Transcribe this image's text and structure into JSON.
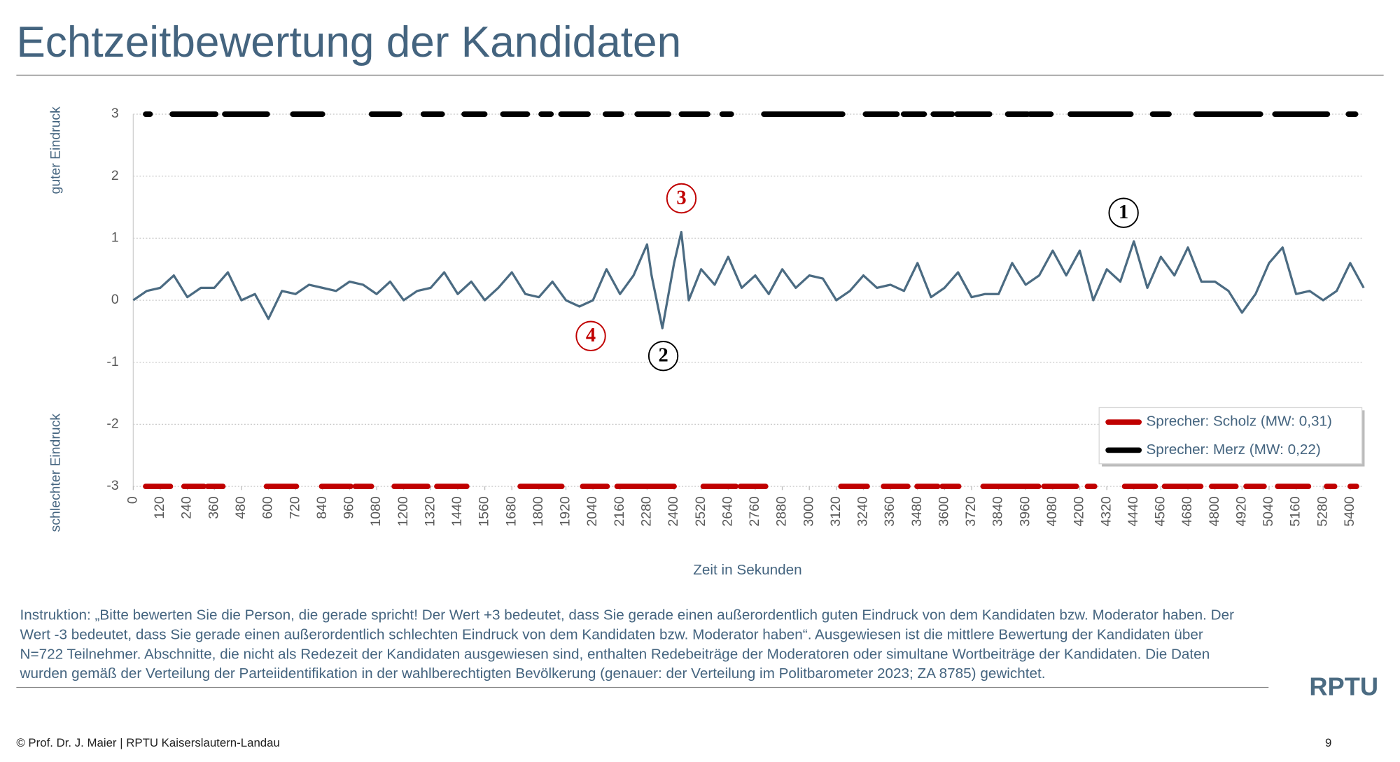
{
  "header": {
    "title": "Echtzeitbewertung der Kandidaten"
  },
  "chart_data": {
    "type": "line",
    "y_label_top": "guter Eindruck",
    "y_label_bottom": "schlechter Eindruck",
    "x_label": "Zeit in Sekunden",
    "xlim": [
      0,
      5460
    ],
    "ylim": [
      -3,
      3
    ],
    "yticks": [
      -3,
      -2,
      -1,
      0,
      1,
      2,
      3
    ],
    "xticks": [
      0,
      120,
      240,
      360,
      480,
      600,
      720,
      840,
      960,
      1080,
      1200,
      1320,
      1440,
      1560,
      1680,
      1800,
      1920,
      2040,
      2160,
      2280,
      2400,
      2520,
      2640,
      2760,
      2880,
      3000,
      3120,
      3240,
      3360,
      3480,
      3600,
      3720,
      3840,
      3960,
      4080,
      4200,
      4320,
      4440,
      4560,
      4680,
      4800,
      4920,
      5040,
      5160,
      5280,
      5400
    ],
    "grid": true,
    "x": [
      0,
      60,
      120,
      180,
      240,
      300,
      360,
      420,
      480,
      540,
      600,
      660,
      720,
      780,
      840,
      900,
      960,
      1020,
      1080,
      1140,
      1200,
      1260,
      1320,
      1380,
      1440,
      1500,
      1560,
      1620,
      1680,
      1740,
      1800,
      1860,
      1920,
      1980,
      2040,
      2100,
      2160,
      2220,
      2280,
      2300,
      2348,
      2400,
      2432,
      2465,
      2520,
      2580,
      2640,
      2700,
      2760,
      2820,
      2880,
      2940,
      3000,
      3060,
      3120,
      3180,
      3240,
      3300,
      3360,
      3420,
      3480,
      3540,
      3600,
      3660,
      3720,
      3780,
      3840,
      3900,
      3960,
      4020,
      4080,
      4140,
      4200,
      4260,
      4320,
      4380,
      4440,
      4500,
      4560,
      4620,
      4680,
      4740,
      4800,
      4860,
      4920,
      4980,
      5040,
      5100,
      5160,
      5220,
      5280,
      5340,
      5400,
      5460
    ],
    "series": [
      {
        "color": "#4b6b82",
        "values": [
          0.0,
          0.15,
          0.2,
          0.4,
          0.05,
          0.2,
          0.2,
          0.45,
          0.0,
          0.1,
          -0.3,
          0.15,
          0.1,
          0.25,
          0.2,
          0.15,
          0.3,
          0.25,
          0.1,
          0.3,
          0.0,
          0.15,
          0.2,
          0.45,
          0.1,
          0.3,
          0.0,
          0.2,
          0.45,
          0.1,
          0.05,
          0.3,
          0.0,
          -0.1,
          0.0,
          0.5,
          0.1,
          0.4,
          0.9,
          0.4,
          -0.45,
          0.6,
          1.1,
          0.0,
          0.5,
          0.25,
          0.7,
          0.2,
          0.4,
          0.1,
          0.5,
          0.2,
          0.4,
          0.35,
          0.0,
          0.15,
          0.4,
          0.2,
          0.25,
          0.15,
          0.6,
          0.05,
          0.2,
          0.45,
          0.05,
          0.1,
          0.1,
          0.6,
          0.25,
          0.4,
          0.8,
          0.4,
          0.8,
          0.0,
          0.5,
          0.3,
          0.95,
          0.2,
          0.7,
          0.4,
          0.85,
          0.3,
          0.3,
          0.15,
          -0.2,
          0.1,
          0.6,
          0.85,
          0.1,
          0.15,
          0.0,
          0.15,
          0.6,
          0.2
        ]
      }
    ],
    "speakers": [
      {
        "name": "Sprecher: Scholz (MW: 0,31)",
        "color": "#c00000",
        "level": -3,
        "segments": [
          [
            55,
            165
          ],
          [
            225,
            314
          ],
          [
            330,
            398
          ],
          [
            591,
            724
          ],
          [
            836,
            965
          ],
          [
            985,
            1057
          ],
          [
            1158,
            1307
          ],
          [
            1347,
            1480
          ],
          [
            1717,
            1902
          ],
          [
            1994,
            2103
          ],
          [
            2147,
            2400
          ],
          [
            2529,
            2674
          ],
          [
            2694,
            2806
          ],
          [
            3140,
            3257
          ],
          [
            3329,
            3437
          ],
          [
            3478,
            3570
          ],
          [
            3590,
            3663
          ],
          [
            3771,
            4017
          ],
          [
            4041,
            4185
          ],
          [
            4234,
            4266
          ],
          [
            4399,
            4535
          ],
          [
            4576,
            4737
          ],
          [
            4785,
            4893
          ],
          [
            4938,
            5018
          ],
          [
            5078,
            5215
          ],
          [
            5295,
            5331
          ],
          [
            5400,
            5428
          ]
        ]
      },
      {
        "name": "Sprecher: Merz (MW: 0,22)",
        "color": "#000000",
        "level": 3,
        "segments": [
          [
            55,
            75
          ],
          [
            173,
            366
          ],
          [
            406,
            595
          ],
          [
            708,
            840
          ],
          [
            1057,
            1182
          ],
          [
            1287,
            1371
          ],
          [
            1468,
            1560
          ],
          [
            1640,
            1749
          ],
          [
            1810,
            1854
          ],
          [
            1898,
            2018
          ],
          [
            2095,
            2167
          ],
          [
            2236,
            2376
          ],
          [
            2432,
            2549
          ],
          [
            2613,
            2654
          ],
          [
            2798,
            3148
          ],
          [
            3249,
            3389
          ],
          [
            3418,
            3510
          ],
          [
            3550,
            3635
          ],
          [
            3655,
            3800
          ],
          [
            3880,
            3969
          ],
          [
            3979,
            4072
          ],
          [
            4158,
            4427
          ],
          [
            4523,
            4596
          ],
          [
            4716,
            5002
          ],
          [
            5066,
            5299
          ],
          [
            5392,
            5424
          ]
        ]
      }
    ],
    "legend_position": "lower right",
    "annotations": [
      {
        "text": "1",
        "color": "#000000"
      },
      {
        "text": "2",
        "color": "#000000"
      },
      {
        "text": "3",
        "color": "#c00000"
      },
      {
        "text": "4",
        "color": "#c00000"
      }
    ]
  },
  "instruction_lines": [
    "Instruktion: „Bitte bewerten Sie die Person, die gerade spricht! Der Wert +3 bedeutet, dass Sie gerade einen außerordentlich guten Eindruck von dem Kandidaten bzw. Moderator haben. Der",
    "Wert -3 bedeutet, dass Sie gerade einen außerordentlich schlechten Eindruck von dem Kandidaten bzw. Moderator haben“. Ausgewiesen ist die mittlere Bewertung der Kandidaten über",
    "N=722 Teilnehmer. Abschnitte, die nicht als Redezeit der Kandidaten ausgewiesen sind, enthalten Redebeiträge der Moderatoren oder simultane Wortbeiträge der Kandidaten. Die Daten",
    "wurden gemäß der Verteilung der Parteiidentifikation in der wahlberechtigten Bevölkerung (genauer: der Verteilung im Politbarometer 2023; ZA 8785) gewichtet."
  ],
  "footer": {
    "copyright": "© Prof. Dr. J. Maier | RPTU Kaiserslautern-Landau",
    "page": "9",
    "logo": "RPTU"
  }
}
